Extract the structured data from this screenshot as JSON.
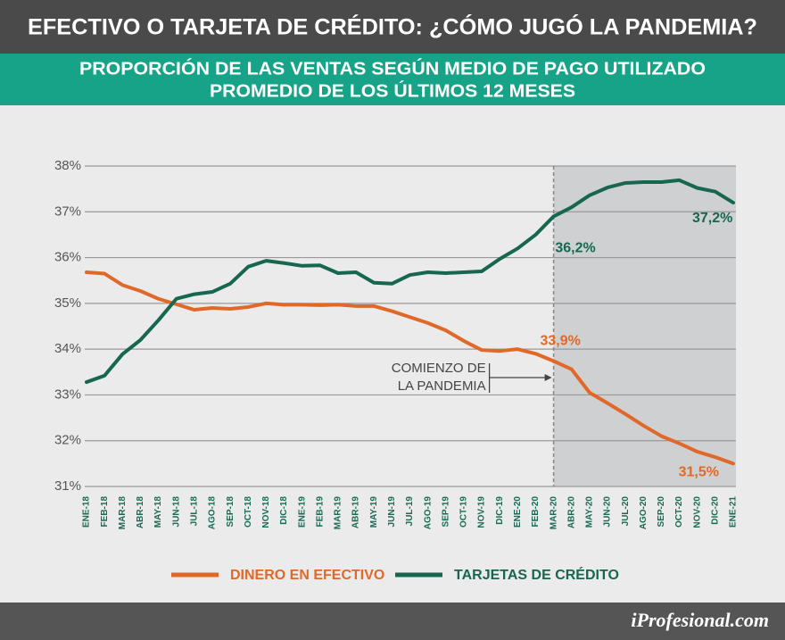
{
  "chart_data": {
    "type": "line",
    "title": "EFECTIVO O TARJETA DE CRÉDITO: ¿CÓMO JUGÓ LA PANDEMIA?",
    "subtitle": [
      "PROPORCIÓN DE LAS VENTAS SEGÚN MEDIO DE PAGO UTILIZADO",
      "PROMEDIO DE LOS ÚLTIMOS 12 MESES"
    ],
    "categories": [
      "ENE-18",
      "FEB-18",
      "MAR-18",
      "ABR-18",
      "MAY-18",
      "JUN-18",
      "JUL-18",
      "AGO-18",
      "SEP-18",
      "OCT-18",
      "NOV-18",
      "DIC-18",
      "ENE-19",
      "FEB-19",
      "MAR-19",
      "ABR-19",
      "MAY-19",
      "JUN-19",
      "JUL-19",
      "AGO-19",
      "SEP-19",
      "OCT-19",
      "NOV-19",
      "DIC-19",
      "ENE-20",
      "FEB-20",
      "MAR-20",
      "ABR-20",
      "MAY-20",
      "JUN-20",
      "JUL-20",
      "AGO-20",
      "SEP-20",
      "OCT-20",
      "NOV-20",
      "DIC-20",
      "ENE-21"
    ],
    "series": [
      {
        "name": "DINERO EN EFECTIVO",
        "color": "#e0692a",
        "values": [
          35.68,
          35.65,
          35.4,
          35.27,
          35.1,
          34.98,
          34.86,
          34.9,
          34.88,
          34.92,
          35.0,
          34.97,
          34.97,
          34.96,
          34.97,
          34.94,
          34.94,
          34.83,
          34.7,
          34.57,
          34.41,
          34.18,
          33.98,
          33.96,
          34.0,
          33.9,
          33.74,
          33.56,
          33.05,
          32.82,
          32.58,
          32.33,
          32.1,
          31.94,
          31.76,
          31.64,
          31.5
        ],
        "value_labels": [
          null,
          null,
          null,
          null,
          null,
          null,
          null,
          null,
          null,
          null,
          null,
          null,
          null,
          null,
          null,
          null,
          null,
          null,
          null,
          null,
          null,
          null,
          null,
          null,
          null,
          "33,9%",
          null,
          null,
          null,
          null,
          null,
          null,
          null,
          null,
          null,
          null,
          "31,5%"
        ]
      },
      {
        "name": "TARJETAS DE CRÉDITO",
        "color": "#17664f",
        "values": [
          33.28,
          33.42,
          33.89,
          34.2,
          34.63,
          35.1,
          35.2,
          35.25,
          35.43,
          35.8,
          35.93,
          35.88,
          35.82,
          35.83,
          35.66,
          35.68,
          35.45,
          35.43,
          35.62,
          35.68,
          35.66,
          35.68,
          35.7,
          35.97,
          36.2,
          36.5,
          36.9,
          37.1,
          37.36,
          37.53,
          37.63,
          37.65,
          37.65,
          37.69,
          37.52,
          37.44,
          37.2
        ],
        "value_labels": [
          null,
          null,
          null,
          null,
          null,
          null,
          null,
          null,
          null,
          null,
          null,
          null,
          null,
          null,
          null,
          null,
          null,
          null,
          null,
          null,
          null,
          null,
          null,
          null,
          "36,2%",
          null,
          null,
          null,
          null,
          null,
          null,
          null,
          null,
          null,
          null,
          null,
          "37,2%"
        ]
      }
    ],
    "ylim": [
      31,
      38
    ],
    "yticks": [
      {
        "value": 31,
        "label": "31%"
      },
      {
        "value": 32,
        "label": "32%"
      },
      {
        "value": 33,
        "label": "33%"
      },
      {
        "value": 34,
        "label": "34%"
      },
      {
        "value": 35,
        "label": "35%"
      },
      {
        "value": 36,
        "label": "36%"
      },
      {
        "value": 37,
        "label": "37%"
      },
      {
        "value": 38,
        "label": "38%"
      }
    ],
    "grid": true,
    "shaded_from": "MAR-20",
    "annotation": [
      "COMIENZO DE",
      "LA PANDEMIA"
    ],
    "source": "iProfesional.com"
  }
}
